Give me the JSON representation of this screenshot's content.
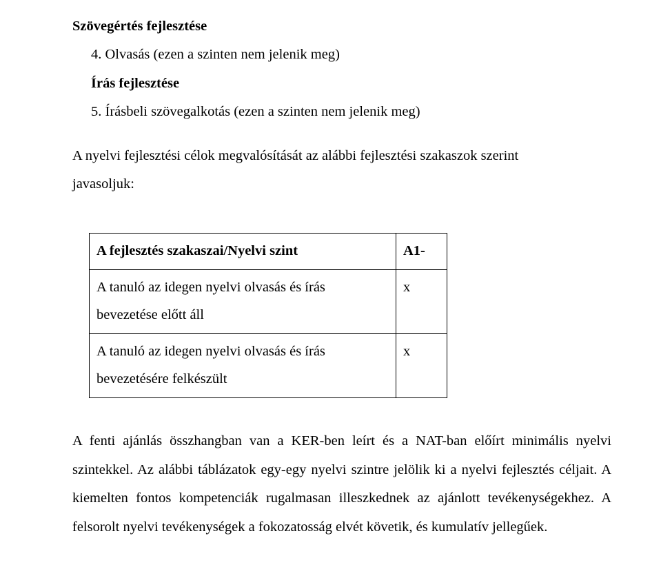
{
  "title1": "Szövegértés fejlesztése",
  "line2": "4. Olvasás (ezen a szinten nem jelenik meg)",
  "title3": "Írás fejlesztése",
  "line4": "5. Írásbeli szövegalkotás (ezen a szinten nem jelenik meg)",
  "para1a": "A nyelvi fejlesztési célok megvalósítását az alábbi fejlesztési szakaszok szerint",
  "para1b": "javasoljuk:",
  "table": {
    "r1c1": "A fejlesztés szakaszai/Nyelvi szint",
    "r1c2": "A1-",
    "r2c1a": "A tanuló az idegen nyelvi olvasás és írás",
    "r2c1b": "bevezetése előtt áll",
    "r2c2": "x",
    "r3c1a": "A tanuló az idegen nyelvi olvasás és írás",
    "r3c1b": "bevezetésére felkészült",
    "r3c2": "x"
  },
  "para2": "A fenti ajánlás összhangban van a KER-ben leírt és a NAT-ban előírt minimális nyelvi szintekkel. Az alábbi táblázatok egy-egy nyelvi szintre jelölik ki a nyelvi fejlesztés céljait. A kiemelten fontos kompetenciák rugalmasan illeszkednek az ajánlott tevékenységekhez. A felsorolt nyelvi tevékenységek a fokozatosság elvét követik, és kumulatív jellegűek."
}
